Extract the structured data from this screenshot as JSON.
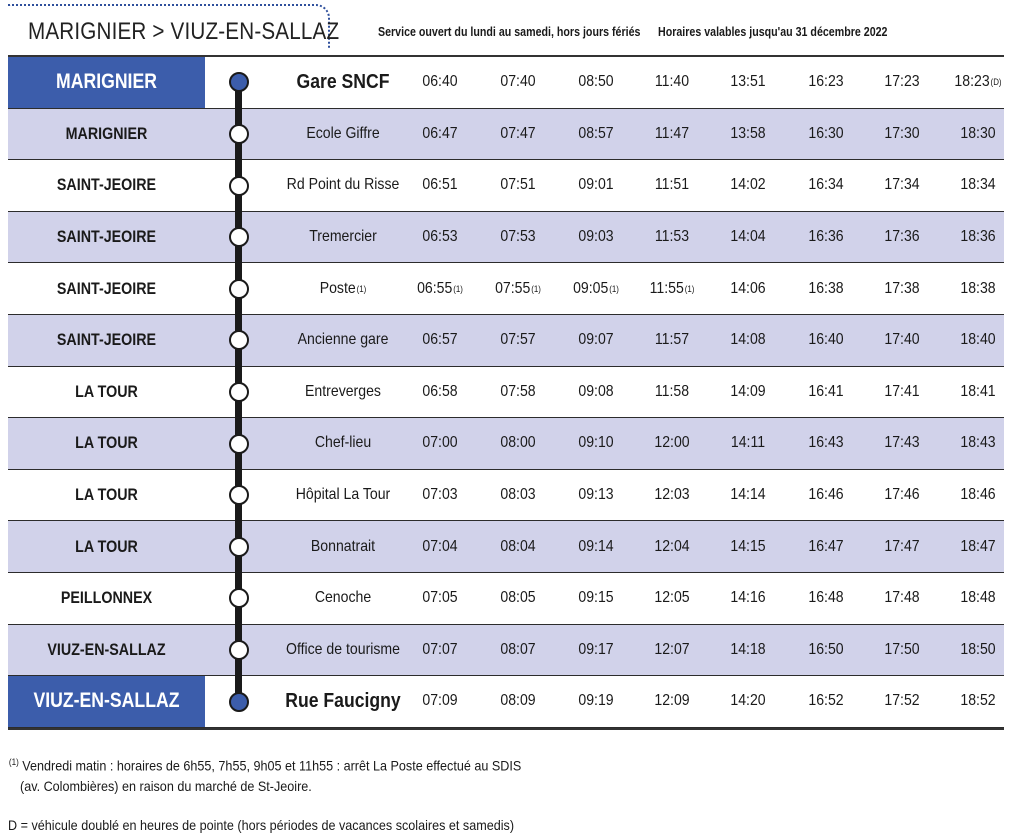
{
  "route_title": "MARIGNIER > VIUZ-EN-SALLAZ",
  "service_note": "Service ouvert du lundi au samedi, hors jours fériés",
  "validity_note": "Horaires valables jusqu'au 31 décembre 2022",
  "colors": {
    "accent_blue": "#3c5dab",
    "row_band": "#d1d2ea",
    "line": "#1a1a1a"
  },
  "rows": [
    {
      "commune": "MARIGNIER",
      "stop": "Gare SNCF",
      "stop_note": "",
      "terminal": true,
      "times": [
        {
          "t": "06:40",
          "n": ""
        },
        {
          "t": "07:40",
          "n": ""
        },
        {
          "t": "08:50",
          "n": ""
        },
        {
          "t": "11:40",
          "n": ""
        },
        {
          "t": "13:51",
          "n": ""
        },
        {
          "t": "16:23",
          "n": ""
        },
        {
          "t": "17:23",
          "n": ""
        },
        {
          "t": "18:23",
          "n": "(D)"
        }
      ]
    },
    {
      "commune": "MARIGNIER",
      "stop": "Ecole Giffre",
      "stop_note": "",
      "terminal": false,
      "times": [
        {
          "t": "06:47",
          "n": ""
        },
        {
          "t": "07:47",
          "n": ""
        },
        {
          "t": "08:57",
          "n": ""
        },
        {
          "t": "11:47",
          "n": ""
        },
        {
          "t": "13:58",
          "n": ""
        },
        {
          "t": "16:30",
          "n": ""
        },
        {
          "t": "17:30",
          "n": ""
        },
        {
          "t": "18:30",
          "n": ""
        }
      ]
    },
    {
      "commune": "SAINT-JEOIRE",
      "stop": "Rd Point du Risse",
      "stop_note": "",
      "terminal": false,
      "times": [
        {
          "t": "06:51",
          "n": ""
        },
        {
          "t": "07:51",
          "n": ""
        },
        {
          "t": "09:01",
          "n": ""
        },
        {
          "t": "11:51",
          "n": ""
        },
        {
          "t": "14:02",
          "n": ""
        },
        {
          "t": "16:34",
          "n": ""
        },
        {
          "t": "17:34",
          "n": ""
        },
        {
          "t": "18:34",
          "n": ""
        }
      ]
    },
    {
      "commune": "SAINT-JEOIRE",
      "stop": "Tremercier",
      "stop_note": "",
      "terminal": false,
      "times": [
        {
          "t": "06:53",
          "n": ""
        },
        {
          "t": "07:53",
          "n": ""
        },
        {
          "t": "09:03",
          "n": ""
        },
        {
          "t": "11:53",
          "n": ""
        },
        {
          "t": "14:04",
          "n": ""
        },
        {
          "t": "16:36",
          "n": ""
        },
        {
          "t": "17:36",
          "n": ""
        },
        {
          "t": "18:36",
          "n": ""
        }
      ]
    },
    {
      "commune": "SAINT-JEOIRE",
      "stop": "Poste",
      "stop_note": "(1)",
      "terminal": false,
      "times": [
        {
          "t": "06:55",
          "n": "(1)"
        },
        {
          "t": "07:55",
          "n": "(1)"
        },
        {
          "t": "09:05",
          "n": "(1)"
        },
        {
          "t": "11:55",
          "n": "(1)"
        },
        {
          "t": "14:06",
          "n": ""
        },
        {
          "t": "16:38",
          "n": ""
        },
        {
          "t": "17:38",
          "n": ""
        },
        {
          "t": "18:38",
          "n": ""
        }
      ]
    },
    {
      "commune": "SAINT-JEOIRE",
      "stop": "Ancienne gare",
      "stop_note": "",
      "terminal": false,
      "times": [
        {
          "t": "06:57",
          "n": ""
        },
        {
          "t": "07:57",
          "n": ""
        },
        {
          "t": "09:07",
          "n": ""
        },
        {
          "t": "11:57",
          "n": ""
        },
        {
          "t": "14:08",
          "n": ""
        },
        {
          "t": "16:40",
          "n": ""
        },
        {
          "t": "17:40",
          "n": ""
        },
        {
          "t": "18:40",
          "n": ""
        }
      ]
    },
    {
      "commune": "LA TOUR",
      "stop": "Entreverges",
      "stop_note": "",
      "terminal": false,
      "times": [
        {
          "t": "06:58",
          "n": ""
        },
        {
          "t": "07:58",
          "n": ""
        },
        {
          "t": "09:08",
          "n": ""
        },
        {
          "t": "11:58",
          "n": ""
        },
        {
          "t": "14:09",
          "n": ""
        },
        {
          "t": "16:41",
          "n": ""
        },
        {
          "t": "17:41",
          "n": ""
        },
        {
          "t": "18:41",
          "n": ""
        }
      ]
    },
    {
      "commune": "LA TOUR",
      "stop": "Chef-lieu",
      "stop_note": "",
      "terminal": false,
      "times": [
        {
          "t": "07:00",
          "n": ""
        },
        {
          "t": "08:00",
          "n": ""
        },
        {
          "t": "09:10",
          "n": ""
        },
        {
          "t": "12:00",
          "n": ""
        },
        {
          "t": "14:11",
          "n": ""
        },
        {
          "t": "16:43",
          "n": ""
        },
        {
          "t": "17:43",
          "n": ""
        },
        {
          "t": "18:43",
          "n": ""
        }
      ]
    },
    {
      "commune": "LA TOUR",
      "stop": "Hôpital La Tour",
      "stop_note": "",
      "terminal": false,
      "times": [
        {
          "t": "07:03",
          "n": ""
        },
        {
          "t": "08:03",
          "n": ""
        },
        {
          "t": "09:13",
          "n": ""
        },
        {
          "t": "12:03",
          "n": ""
        },
        {
          "t": "14:14",
          "n": ""
        },
        {
          "t": "16:46",
          "n": ""
        },
        {
          "t": "17:46",
          "n": ""
        },
        {
          "t": "18:46",
          "n": ""
        }
      ]
    },
    {
      "commune": "LA TOUR",
      "stop": "Bonnatrait",
      "stop_note": "",
      "terminal": false,
      "times": [
        {
          "t": "07:04",
          "n": ""
        },
        {
          "t": "08:04",
          "n": ""
        },
        {
          "t": "09:14",
          "n": ""
        },
        {
          "t": "12:04",
          "n": ""
        },
        {
          "t": "14:15",
          "n": ""
        },
        {
          "t": "16:47",
          "n": ""
        },
        {
          "t": "17:47",
          "n": ""
        },
        {
          "t": "18:47",
          "n": ""
        }
      ]
    },
    {
      "commune": "PEILLONNEX",
      "stop": "Cenoche",
      "stop_note": "",
      "terminal": false,
      "times": [
        {
          "t": "07:05",
          "n": ""
        },
        {
          "t": "08:05",
          "n": ""
        },
        {
          "t": "09:15",
          "n": ""
        },
        {
          "t": "12:05",
          "n": ""
        },
        {
          "t": "14:16",
          "n": ""
        },
        {
          "t": "16:48",
          "n": ""
        },
        {
          "t": "17:48",
          "n": ""
        },
        {
          "t": "18:48",
          "n": ""
        }
      ]
    },
    {
      "commune": "VIUZ-EN-SALLAZ",
      "stop": "Office de tourisme",
      "stop_note": "",
      "terminal": false,
      "times": [
        {
          "t": "07:07",
          "n": ""
        },
        {
          "t": "08:07",
          "n": ""
        },
        {
          "t": "09:17",
          "n": ""
        },
        {
          "t": "12:07",
          "n": ""
        },
        {
          "t": "14:18",
          "n": ""
        },
        {
          "t": "16:50",
          "n": ""
        },
        {
          "t": "17:50",
          "n": ""
        },
        {
          "t": "18:50",
          "n": ""
        }
      ]
    },
    {
      "commune": "VIUZ-EN-SALLAZ",
      "stop": "Rue Faucigny",
      "stop_note": "",
      "terminal": true,
      "times": [
        {
          "t": "07:09",
          "n": ""
        },
        {
          "t": "08:09",
          "n": ""
        },
        {
          "t": "09:19",
          "n": ""
        },
        {
          "t": "12:09",
          "n": ""
        },
        {
          "t": "14:20",
          "n": ""
        },
        {
          "t": "16:52",
          "n": ""
        },
        {
          "t": "17:52",
          "n": ""
        },
        {
          "t": "18:52",
          "n": ""
        }
      ]
    }
  ],
  "footnotes": {
    "note1_marker": "(1)",
    "note1_line1": "Vendredi matin : horaires de 6h55, 7h55, 9h05 et 11h55 : arrêt La Poste effectué au SDIS",
    "note1_line2": "(av. Colombières) en raison du marché de St-Jeoire.",
    "noteD": "D = véhicule doublé en heures de pointe (hors périodes de vacances scolaires et samedis)"
  }
}
